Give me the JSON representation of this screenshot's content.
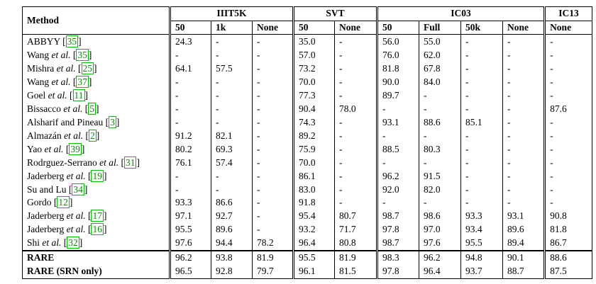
{
  "header": {
    "method": "Method",
    "groups": [
      "IIIT5K",
      "SVT",
      "IC03",
      "IC13"
    ],
    "subs": [
      "50",
      "1k",
      "None",
      "50",
      "None",
      "50",
      "Full",
      "50k",
      "None",
      "None"
    ]
  },
  "rows": [
    {
      "name": "ABBYY",
      "etal": "",
      "ref": "35",
      "vals": [
        "24.3",
        "-",
        "-",
        "35.0",
        "-",
        "56.0",
        "55.0",
        "-",
        "-",
        "-"
      ],
      "bold": []
    },
    {
      "name": "Wang",
      "etal": "et al.",
      "ref": "35",
      "vals": [
        "-",
        "-",
        "-",
        "57.0",
        "-",
        "76.0",
        "62.0",
        "-",
        "-",
        "-"
      ],
      "bold": []
    },
    {
      "name": "Mishra",
      "etal": "et al.",
      "ref": "25",
      "vals": [
        "64.1",
        "57.5",
        "-",
        "73.2",
        "-",
        "81.8",
        "67.8",
        "-",
        "-",
        "-"
      ],
      "bold": []
    },
    {
      "name": "Wang",
      "etal": "et al.",
      "ref": "37",
      "vals": [
        "-",
        "-",
        "-",
        "70.0",
        "-",
        "90.0",
        "84.0",
        "-",
        "-",
        "-"
      ],
      "bold": []
    },
    {
      "name": "Goel",
      "etal": "et al.",
      "ref": "11",
      "vals": [
        "-",
        "-",
        "-",
        "77.3",
        "-",
        "89.7",
        "-",
        "-",
        "-",
        "-"
      ],
      "bold": []
    },
    {
      "name": "Bissacco",
      "etal": "et al.",
      "ref": "5",
      "vals": [
        "-",
        "-",
        "-",
        "90.4",
        "78.0",
        "-",
        "-",
        "-",
        "-",
        "87.6"
      ],
      "bold": []
    },
    {
      "name": "Alsharif and Pineau",
      "etal": "",
      "ref": "3",
      "vals": [
        "-",
        "-",
        "-",
        "74.3",
        "-",
        "93.1",
        "88.6",
        "85.1",
        "-",
        "-"
      ],
      "bold": []
    },
    {
      "name": "Almazán",
      "etal": "et al.",
      "ref": "2",
      "vals": [
        "91.2",
        "82.1",
        "-",
        "89.2",
        "-",
        "-",
        "-",
        "-",
        "-",
        "-"
      ],
      "bold": []
    },
    {
      "name": "Yao",
      "etal": "et al.",
      "ref": "39",
      "vals": [
        "80.2",
        "69.3",
        "-",
        "75.9",
        "-",
        "88.5",
        "80.3",
        "-",
        "-",
        "-"
      ],
      "bold": []
    },
    {
      "name": "Rodrguez-Serrano",
      "etal": "et al.",
      "ref": "31",
      "vals": [
        "76.1",
        "57.4",
        "-",
        "70.0",
        "-",
        "-",
        "-",
        "-",
        "-",
        "-"
      ],
      "bold": []
    },
    {
      "name": "Jaderberg",
      "etal": "et al.",
      "ref": "19",
      "vals": [
        "-",
        "-",
        "-",
        "86.1",
        "-",
        "96.2",
        "91.5",
        "-",
        "-",
        "-"
      ],
      "bold": []
    },
    {
      "name": "Su and Lu",
      "etal": "",
      "ref": "34",
      "vals": [
        "-",
        "-",
        "-",
        "83.0",
        "-",
        "92.0",
        "82.0",
        "-",
        "-",
        "-"
      ],
      "bold": []
    },
    {
      "name": "Gordo",
      "etal": "",
      "ref": "12",
      "vals": [
        "93.3",
        "86.6",
        "-",
        "91.8",
        "-",
        "-",
        "-",
        "-",
        "-",
        "-"
      ],
      "bold": []
    },
    {
      "name": "Jaderberg",
      "etal": "et al.",
      "ref": "17",
      "vals": [
        "97.1",
        "92.7",
        "-",
        "95.4",
        "80.7",
        "98.7",
        "98.6",
        "93.3",
        "93.1",
        "90.8"
      ],
      "bold": [
        5,
        6,
        8,
        9
      ]
    },
    {
      "name": "Jaderberg",
      "etal": "et al.",
      "ref": "16",
      "vals": [
        "95.5",
        "89.6",
        "-",
        "93.2",
        "71.7",
        "97.8",
        "97.0",
        "93.4",
        "89.6",
        "81.8"
      ],
      "bold": []
    },
    {
      "name": "Shi",
      "etal": "et al.",
      "ref": "32",
      "vals": [
        "97.6",
        "94.4",
        "78.2",
        "96.4",
        "80.8",
        "98.7",
        "97.6",
        "95.5",
        "89.4",
        "86.7"
      ],
      "bold": [
        0,
        1,
        3,
        5,
        7
      ]
    },
    {
      "name": "RARE",
      "etal": "",
      "ref": "",
      "vals": [
        "96.2",
        "93.8",
        "81.9",
        "95.5",
        "81.9",
        "98.3",
        "96.2",
        "94.8",
        "90.1",
        "88.6"
      ],
      "bold": [
        2,
        4
      ],
      "nameBold": true,
      "sep": true
    },
    {
      "name": "RARE (SRN only)",
      "etal": "",
      "ref": "",
      "vals": [
        "96.5",
        "92.8",
        "79.7",
        "96.1",
        "81.5",
        "97.8",
        "96.4",
        "93.7",
        "88.7",
        "87.5"
      ],
      "bold": [],
      "nameBold": true
    }
  ]
}
